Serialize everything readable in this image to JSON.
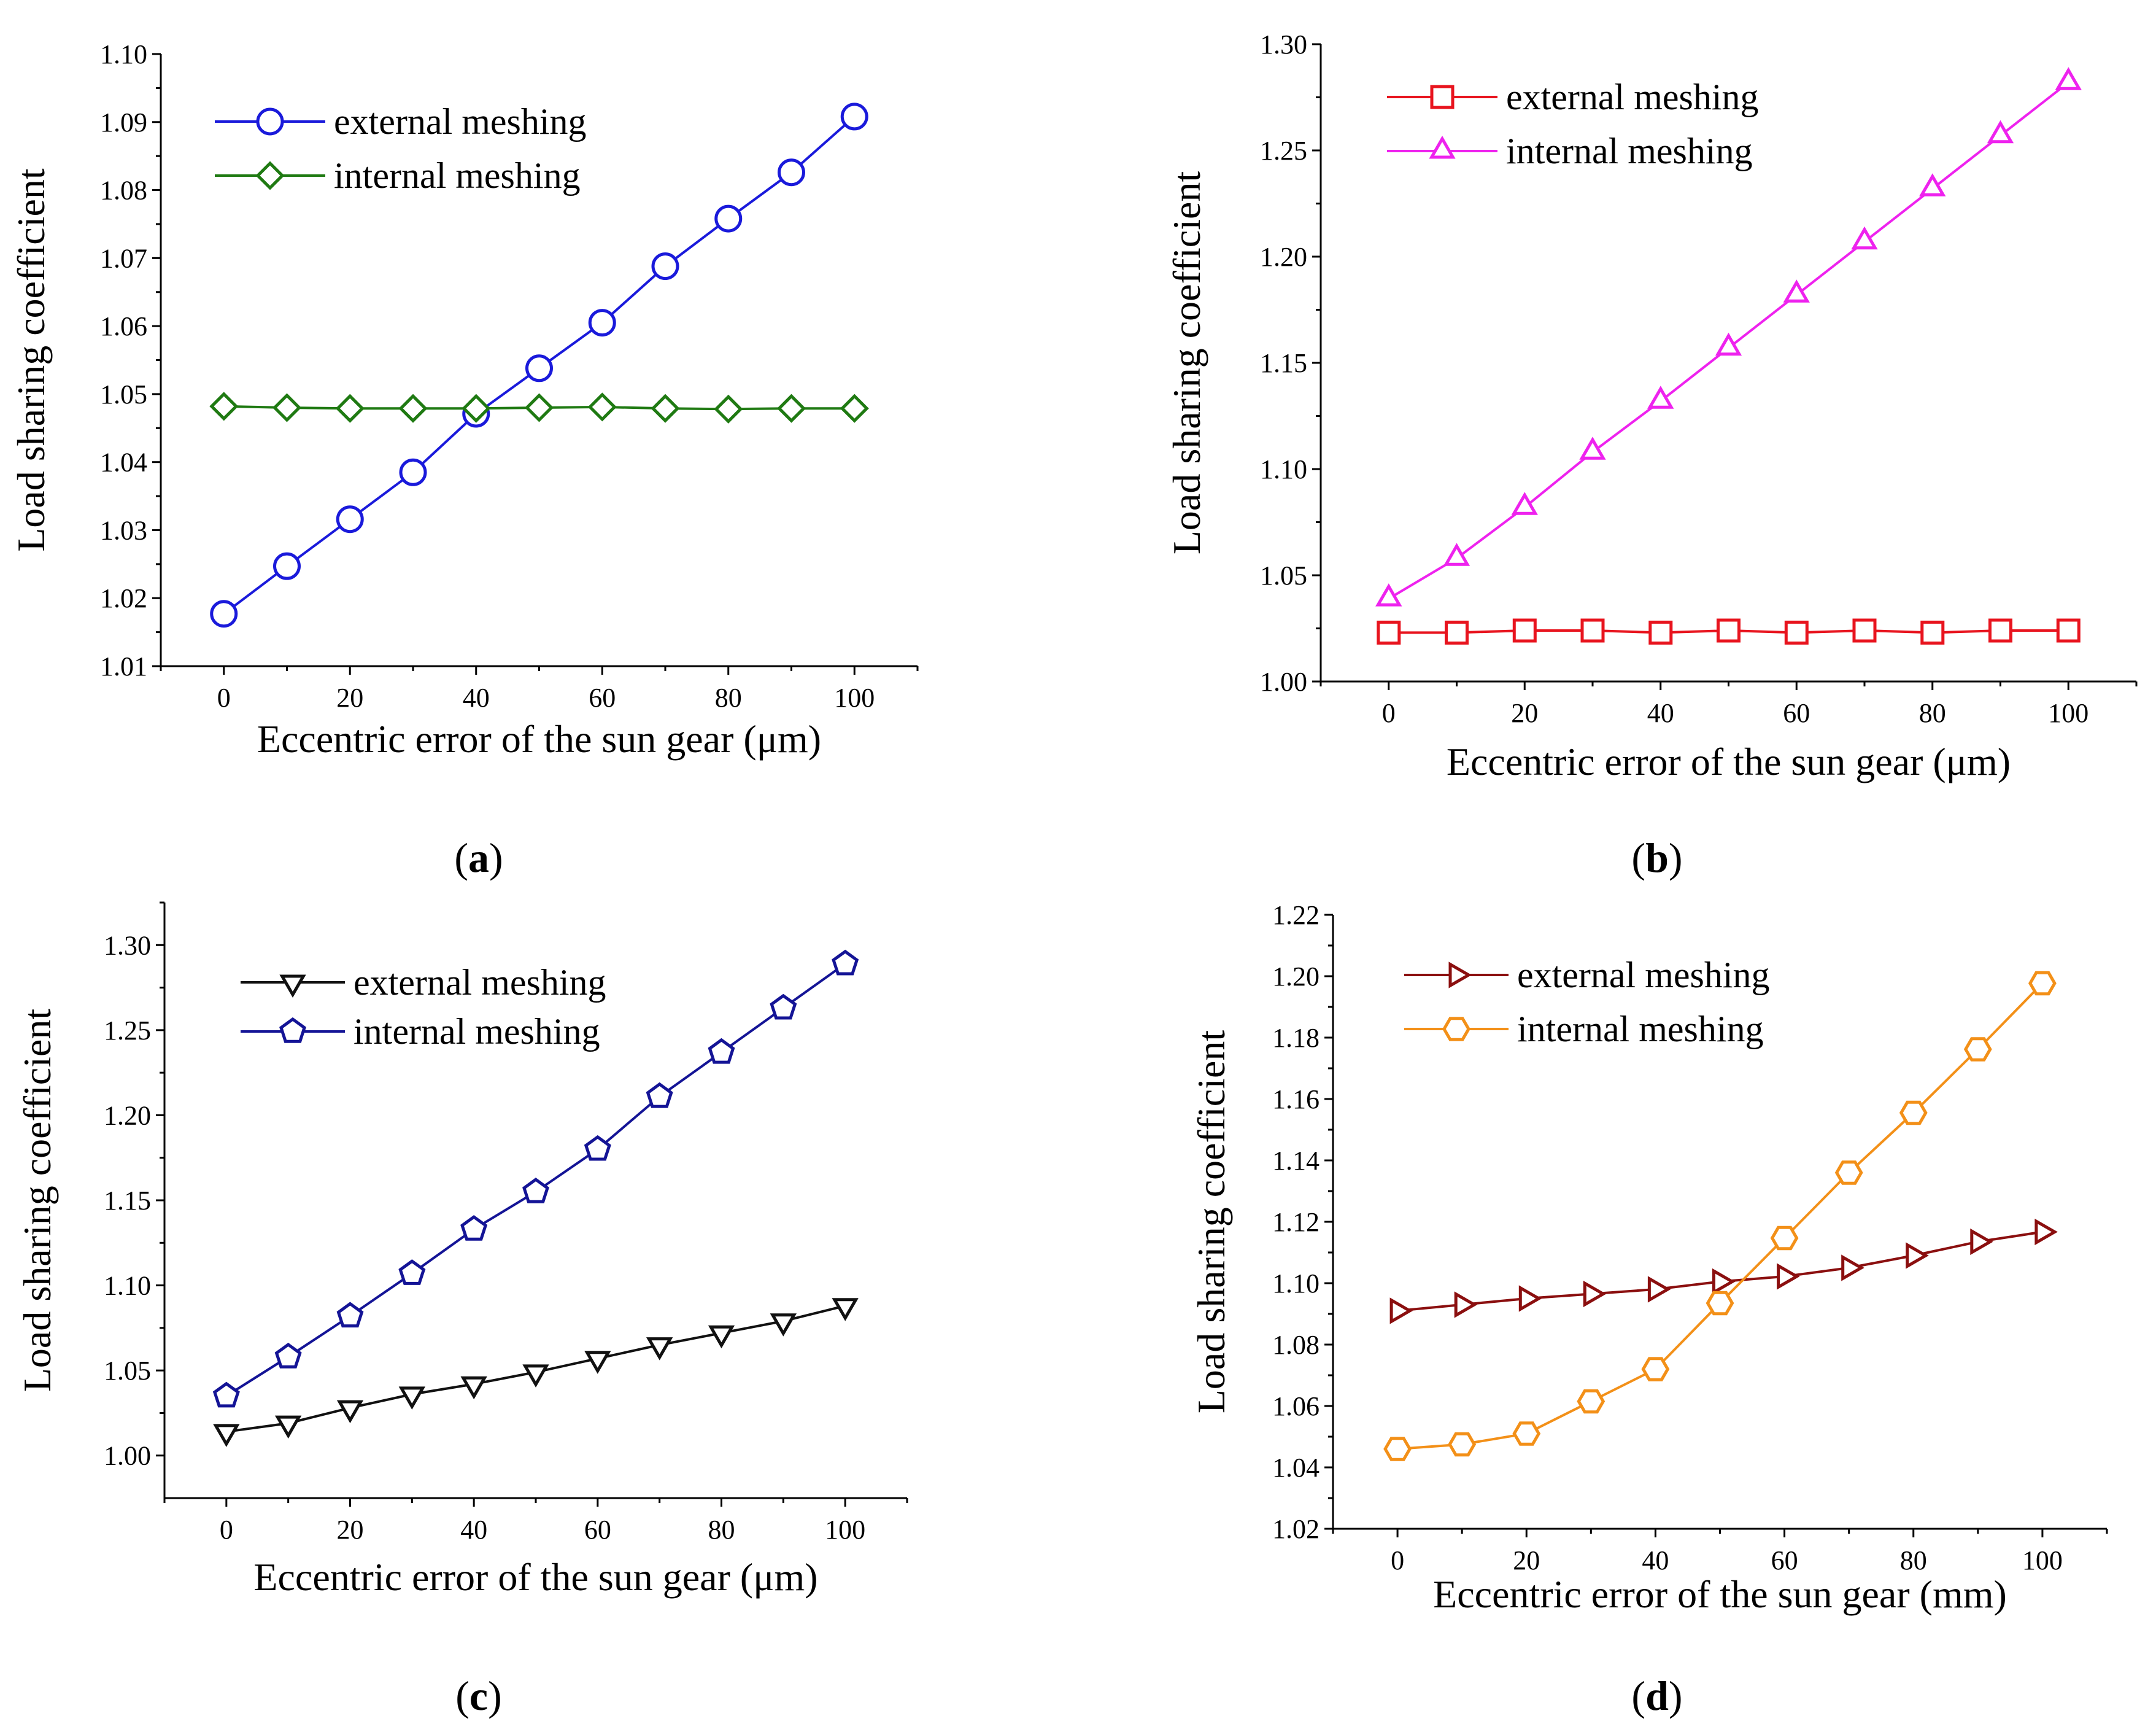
{
  "chart_data": [
    {
      "type": "line",
      "caption_letter": "a",
      "xlabel": "Eccentric error of the sun gear (μm)",
      "ylabel": "Load sharing coefficient",
      "xlim": [
        -10,
        110
      ],
      "ylim": [
        1.01,
        1.1
      ],
      "xticks": [
        0,
        20,
        40,
        60,
        80,
        100
      ],
      "xtick_labels": [
        "0",
        "20",
        "40",
        "60",
        "80",
        "100"
      ],
      "yticks": [
        1.01,
        1.02,
        1.03,
        1.04,
        1.05,
        1.06,
        1.07,
        1.08,
        1.09,
        1.1
      ],
      "ytick_labels": [
        "1.01",
        "1.02",
        "1.03",
        "1.04",
        "1.05",
        "1.06",
        "1.07",
        "1.08",
        "1.09",
        "1.10"
      ],
      "legend_position": "top-left",
      "x": [
        0,
        10,
        20,
        30,
        40,
        50,
        60,
        70,
        80,
        90,
        100
      ],
      "series": [
        {
          "name": "external meshing",
          "color": "#1a1adb",
          "marker": "circle",
          "values": [
            1.0177,
            1.0247,
            1.0316,
            1.0385,
            1.0471,
            1.0538,
            1.0605,
            1.0688,
            1.0758,
            1.0826,
            1.0908
          ]
        },
        {
          "name": "internal meshing",
          "color": "#1f7a12",
          "marker": "diamond",
          "values": [
            1.0482,
            1.048,
            1.0479,
            1.0479,
            1.0479,
            1.048,
            1.0481,
            1.0479,
            1.0478,
            1.0479,
            1.0479
          ]
        }
      ]
    },
    {
      "type": "line",
      "caption_letter": "b",
      "xlabel": "Eccentric error of the sun gear (μm)",
      "ylabel": "Load sharing coefficient",
      "xlim": [
        -10,
        110
      ],
      "ylim": [
        1.0,
        1.3
      ],
      "xticks": [
        0,
        20,
        40,
        60,
        80,
        100
      ],
      "xtick_labels": [
        "0",
        "20",
        "40",
        "60",
        "80",
        "100"
      ],
      "yticks": [
        1.0,
        1.05,
        1.1,
        1.15,
        1.2,
        1.25,
        1.3
      ],
      "ytick_labels": [
        "1.00",
        "1.05",
        "1.10",
        "1.15",
        "1.20",
        "1.25",
        "1.30"
      ],
      "legend_position": "top-left",
      "x": [
        0,
        10,
        20,
        30,
        40,
        50,
        60,
        70,
        80,
        90,
        100
      ],
      "series": [
        {
          "name": "external meshing",
          "color": "#e8141e",
          "marker": "square",
          "values": [
            1.023,
            1.023,
            1.024,
            1.024,
            1.023,
            1.024,
            1.023,
            1.024,
            1.023,
            1.024,
            1.024
          ]
        },
        {
          "name": "internal meshing",
          "color": "#ee22ee",
          "marker": "triangle-up",
          "values": [
            1.039,
            1.058,
            1.082,
            1.108,
            1.132,
            1.157,
            1.182,
            1.207,
            1.232,
            1.257,
            1.282
          ]
        }
      ]
    },
    {
      "type": "line",
      "caption_letter": "c",
      "xlabel": "Eccentric error of the sun gear (μm)",
      "ylabel": "Load sharing coefficient",
      "xlim": [
        -10,
        110
      ],
      "ylim": [
        0.975,
        1.325
      ],
      "xticks": [
        0,
        20,
        40,
        60,
        80,
        100
      ],
      "xtick_labels": [
        "0",
        "20",
        "40",
        "60",
        "80",
        "100"
      ],
      "yticks": [
        1.0,
        1.05,
        1.1,
        1.15,
        1.2,
        1.25,
        1.3
      ],
      "ytick_labels": [
        "1.00",
        "1.05",
        "1.10",
        "1.15",
        "1.20",
        "1.25",
        "1.30"
      ],
      "legend_position": "top-left",
      "x": [
        0,
        10,
        20,
        30,
        40,
        50,
        60,
        70,
        80,
        90,
        100
      ],
      "series": [
        {
          "name": "external meshing",
          "color": "#111111",
          "marker": "triangle-down",
          "values": [
            1.014,
            1.019,
            1.028,
            1.036,
            1.042,
            1.049,
            1.057,
            1.065,
            1.072,
            1.079,
            1.088
          ]
        },
        {
          "name": "internal meshing",
          "color": "#141496",
          "marker": "pentagon",
          "values": [
            1.035,
            1.058,
            1.082,
            1.107,
            1.133,
            1.155,
            1.18,
            1.211,
            1.237,
            1.263,
            1.289
          ]
        }
      ]
    },
    {
      "type": "line",
      "caption_letter": "d",
      "xlabel": "Eccentric error of the sun gear (mm)",
      "ylabel": "Load sharing coefficient",
      "xlim": [
        -10,
        110
      ],
      "ylim": [
        1.02,
        1.22
      ],
      "xticks": [
        0,
        20,
        40,
        60,
        80,
        100
      ],
      "xtick_labels": [
        "0",
        "20",
        "40",
        "60",
        "80",
        "100"
      ],
      "yticks": [
        1.02,
        1.04,
        1.06,
        1.08,
        1.1,
        1.12,
        1.14,
        1.16,
        1.18,
        1.2,
        1.22
      ],
      "ytick_labels": [
        "1.02",
        "1.04",
        "1.06",
        "1.08",
        "1.10",
        "1.12",
        "1.14",
        "1.16",
        "1.18",
        "1.20",
        "1.22"
      ],
      "legend_position": "top-left",
      "x": [
        0,
        10,
        20,
        30,
        40,
        50,
        60,
        70,
        80,
        90,
        100
      ],
      "series": [
        {
          "name": "external meshing",
          "color": "#8b0f0f",
          "marker": "triangle-right",
          "values": [
            1.091,
            1.093,
            1.095,
            1.0965,
            1.098,
            1.1005,
            1.1022,
            1.105,
            1.109,
            1.1135,
            1.1167
          ]
        },
        {
          "name": "internal meshing",
          "color": "#f39018",
          "marker": "hexagon",
          "values": [
            1.046,
            1.0475,
            1.051,
            1.0615,
            1.072,
            1.0935,
            1.1147,
            1.136,
            1.1555,
            1.1762,
            1.1977
          ]
        }
      ]
    }
  ]
}
